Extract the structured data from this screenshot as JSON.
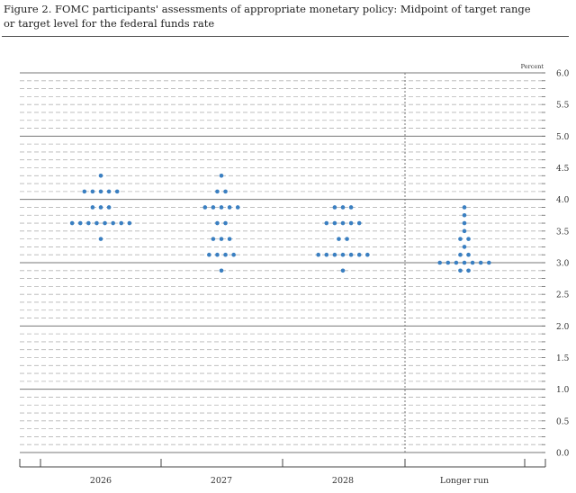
{
  "figure": {
    "title_line1": "Figure 2. FOMC participants' assessments of appropriate monetary policy: Midpoint of target range",
    "title_line2": "or target level for the federal funds rate"
  },
  "chart_data": {
    "type": "scatter",
    "subtype": "dot-plot",
    "unit_label": "Percent",
    "categories": [
      "2026",
      "2027",
      "2028",
      "Longer run"
    ],
    "ylim": [
      0,
      6
    ],
    "y_ticks": [
      "0.0",
      "0.5",
      "1.0",
      "1.5",
      "2.0",
      "2.5",
      "3.0",
      "3.5",
      "4.0",
      "4.5",
      "5.0",
      "5.5",
      "6.0"
    ],
    "grid": "dashed minor every 0.125, solid major every 1.0",
    "dot_color": "#3a7fc1",
    "series": [
      {
        "category": "2026",
        "dots": [
          {
            "y": 4.375,
            "count": 1
          },
          {
            "y": 4.125,
            "count": 5
          },
          {
            "y": 3.875,
            "count": 3
          },
          {
            "y": 3.625,
            "count": 8
          },
          {
            "y": 3.375,
            "count": 1
          }
        ]
      },
      {
        "category": "2027",
        "dots": [
          {
            "y": 4.375,
            "count": 1
          },
          {
            "y": 4.125,
            "count": 2
          },
          {
            "y": 3.875,
            "count": 5
          },
          {
            "y": 3.625,
            "count": 2
          },
          {
            "y": 3.375,
            "count": 3
          },
          {
            "y": 3.125,
            "count": 4
          },
          {
            "y": 2.875,
            "count": 1
          }
        ]
      },
      {
        "category": "2028",
        "dots": [
          {
            "y": 3.875,
            "count": 3
          },
          {
            "y": 3.625,
            "count": 5
          },
          {
            "y": 3.375,
            "count": 2
          },
          {
            "y": 3.125,
            "count": 7
          },
          {
            "y": 2.875,
            "count": 1
          }
        ]
      },
      {
        "category": "Longer run",
        "dots": [
          {
            "y": 3.875,
            "count": 1
          },
          {
            "y": 3.75,
            "count": 1
          },
          {
            "y": 3.625,
            "count": 1
          },
          {
            "y": 3.5,
            "count": 1
          },
          {
            "y": 3.375,
            "count": 2
          },
          {
            "y": 3.25,
            "count": 1
          },
          {
            "y": 3.125,
            "count": 2
          },
          {
            "y": 3.0,
            "count": 7
          },
          {
            "y": 2.875,
            "count": 2
          }
        ]
      }
    ]
  }
}
